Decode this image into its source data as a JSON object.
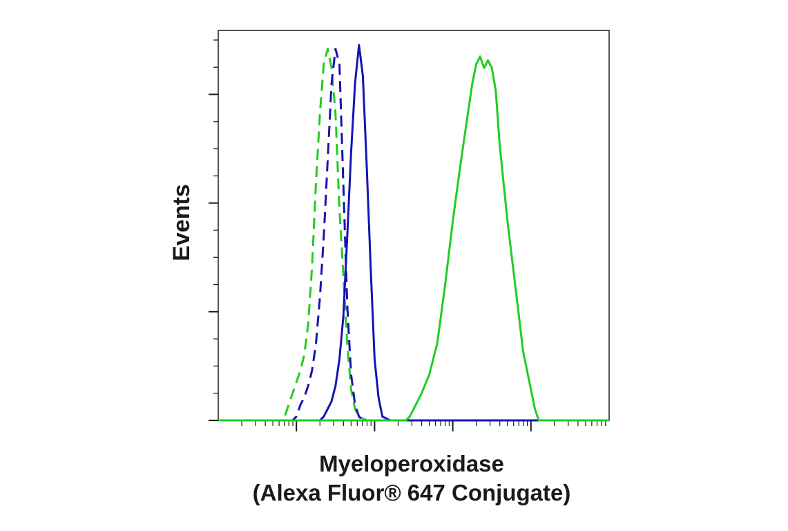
{
  "chart_data": {
    "type": "line",
    "title": "",
    "xlabel_line1": "Myeloperoxidase",
    "xlabel_line2": "(Alexa Fluor® 647 Conjugate)",
    "ylabel": "Events",
    "x_scale": "log",
    "xlim": [
      0,
      5
    ],
    "ylim": [
      0,
      100
    ],
    "grid": false,
    "legend": "none",
    "series": [
      {
        "color": "#22cc22",
        "dash": "dashed",
        "points": [
          [
            0,
            0
          ],
          [
            0.8,
            0
          ],
          [
            0.85,
            1
          ],
          [
            0.9,
            4
          ],
          [
            0.95,
            7
          ],
          [
            1.0,
            10
          ],
          [
            1.05,
            13
          ],
          [
            1.1,
            17
          ],
          [
            1.15,
            25
          ],
          [
            1.2,
            40
          ],
          [
            1.25,
            62
          ],
          [
            1.3,
            80
          ],
          [
            1.35,
            93
          ],
          [
            1.4,
            97
          ],
          [
            1.45,
            92
          ],
          [
            1.5,
            80
          ],
          [
            1.55,
            55
          ],
          [
            1.6,
            38
          ],
          [
            1.65,
            20
          ],
          [
            1.7,
            8
          ],
          [
            1.75,
            3
          ],
          [
            1.8,
            1
          ],
          [
            1.9,
            0
          ],
          [
            5,
            0
          ]
        ]
      },
      {
        "color": "#1414b4",
        "dash": "dashed",
        "points": [
          [
            0,
            0
          ],
          [
            0.95,
            0
          ],
          [
            1.0,
            1
          ],
          [
            1.05,
            4
          ],
          [
            1.1,
            6
          ],
          [
            1.15,
            9
          ],
          [
            1.2,
            13
          ],
          [
            1.25,
            20
          ],
          [
            1.3,
            32
          ],
          [
            1.35,
            48
          ],
          [
            1.4,
            68
          ],
          [
            1.45,
            88
          ],
          [
            1.5,
            97
          ],
          [
            1.55,
            93
          ],
          [
            1.6,
            62
          ],
          [
            1.65,
            30
          ],
          [
            1.7,
            12
          ],
          [
            1.75,
            4
          ],
          [
            1.8,
            1
          ],
          [
            1.85,
            0
          ],
          [
            5,
            0
          ]
        ]
      },
      {
        "color": "#1414b4",
        "dash": "solid",
        "points": [
          [
            0,
            0
          ],
          [
            1.3,
            0
          ],
          [
            1.35,
            1
          ],
          [
            1.4,
            3
          ],
          [
            1.45,
            5
          ],
          [
            1.5,
            9
          ],
          [
            1.55,
            16
          ],
          [
            1.6,
            27
          ],
          [
            1.65,
            48
          ],
          [
            1.7,
            70
          ],
          [
            1.75,
            88
          ],
          [
            1.8,
            98
          ],
          [
            1.85,
            90
          ],
          [
            1.9,
            66
          ],
          [
            1.95,
            40
          ],
          [
            2.0,
            16
          ],
          [
            2.05,
            6
          ],
          [
            2.1,
            1
          ],
          [
            2.2,
            0
          ],
          [
            5,
            0
          ]
        ]
      },
      {
        "color": "#22cc22",
        "dash": "solid",
        "points": [
          [
            0,
            0
          ],
          [
            2.4,
            0
          ],
          [
            2.45,
            1
          ],
          [
            2.5,
            3
          ],
          [
            2.6,
            7
          ],
          [
            2.7,
            12
          ],
          [
            2.8,
            20
          ],
          [
            2.9,
            35
          ],
          [
            3.0,
            52
          ],
          [
            3.1,
            67
          ],
          [
            3.2,
            81
          ],
          [
            3.25,
            88
          ],
          [
            3.3,
            93
          ],
          [
            3.35,
            95
          ],
          [
            3.4,
            92
          ],
          [
            3.45,
            94
          ],
          [
            3.5,
            92
          ],
          [
            3.55,
            86
          ],
          [
            3.6,
            72
          ],
          [
            3.7,
            52
          ],
          [
            3.8,
            35
          ],
          [
            3.9,
            18
          ],
          [
            4.0,
            8
          ],
          [
            4.05,
            3
          ],
          [
            4.1,
            0
          ],
          [
            5,
            0
          ]
        ]
      }
    ]
  }
}
